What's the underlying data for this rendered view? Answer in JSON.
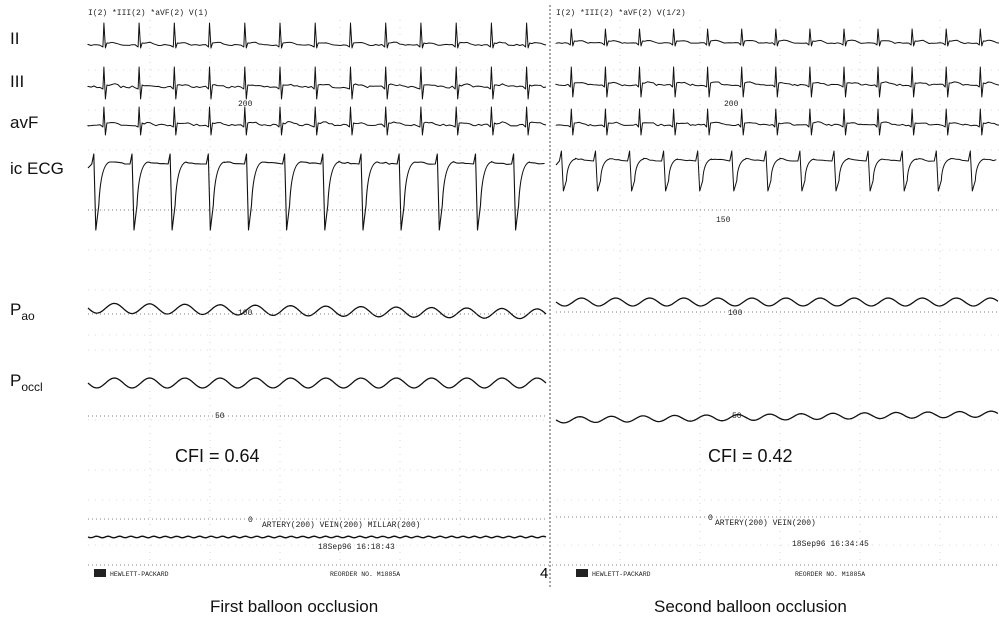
{
  "chart_data": {
    "type": "line",
    "leads": [
      {
        "id": "II",
        "label": "II",
        "sub": ""
      },
      {
        "id": "III",
        "label": "III",
        "sub": ""
      },
      {
        "id": "avF",
        "label": "avF",
        "sub": ""
      },
      {
        "id": "icecg",
        "label": "ic ECG",
        "sub": ""
      },
      {
        "id": "pao",
        "label": "P",
        "sub": "ao"
      },
      {
        "id": "poccl",
        "label": "P",
        "sub": "occl"
      }
    ],
    "panels": [
      {
        "caption": "First balloon occlusion",
        "cfi": "CFI = 0.64",
        "channel_header": "I(2) *III(2) *aVF(2) V(1)",
        "scale_marks": [
          "200",
          "100",
          "50",
          "0"
        ],
        "recorder_label": "ARTERY(200) VEIN(200) MILLAR(200)",
        "timestamp": "18Sep96  16:18:43",
        "brand": "HEWLETT-PACKARD",
        "reorder": "REORDER NO.  M1885A",
        "page_number": "4",
        "beats": 13
      },
      {
        "caption": "Second balloon occlusion",
        "cfi": "CFI = 0.42",
        "channel_header": "I(2) *III(2) *aVF(2) V(1/2)",
        "scale_marks": [
          "200",
          "150",
          "100",
          "50",
          "0"
        ],
        "recorder_label": "ARTERY(200) VEIN(200)",
        "timestamp": "18Sep96  16:34:45",
        "brand": "HEWLETT-PACKARD",
        "reorder": "REORDER NO.  M1885A",
        "page_number": "",
        "beats": 13
      }
    ]
  }
}
